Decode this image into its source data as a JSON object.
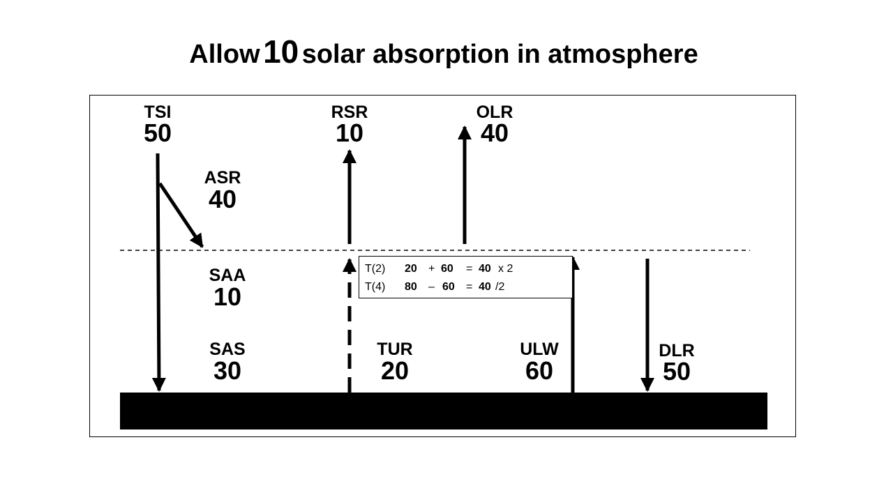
{
  "title": {
    "parts": [
      "Allow",
      "10",
      "solar absorption in atmosphere"
    ]
  },
  "nodes": [
    {
      "label": "TSI",
      "value": "50"
    },
    {
      "label": "RSR",
      "value": "10"
    },
    {
      "label": "OLR",
      "value": "40"
    },
    {
      "label": "ASR",
      "value": "40"
    },
    {
      "label": "SAA",
      "value": "10"
    },
    {
      "label": "SAS",
      "value": "30"
    },
    {
      "label": "TUR",
      "value": "20"
    },
    {
      "label": "ULW",
      "value": "60"
    },
    {
      "label": "DLR",
      "value": "50"
    }
  ],
  "equations": [
    [
      "T(2)",
      "20",
      "+",
      "60",
      "=",
      "40",
      "x 2"
    ],
    [
      "T(4)",
      "80",
      "–",
      "60",
      "=",
      "40",
      "/2"
    ]
  ]
}
